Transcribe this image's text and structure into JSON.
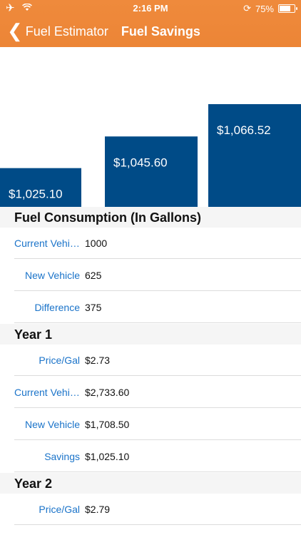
{
  "status": {
    "time": "2:16 PM",
    "battery": "75%",
    "battery_level": 0.75
  },
  "nav": {
    "back_label": "Fuel Estimator",
    "title": "Fuel Savings"
  },
  "colors": {
    "header": "#ec8536",
    "bars": "#004b87",
    "label": "#1a73c9"
  },
  "chart_data": {
    "type": "bar",
    "categories": [
      "",
      "",
      ""
    ],
    "values": [
      1025.1,
      1045.6,
      1066.52
    ],
    "labels": [
      "$1,025.10",
      "$1,045.60",
      "$1,066.52"
    ],
    "title": "",
    "xlabel": "",
    "ylabel": ""
  },
  "sections": [
    {
      "title": "Fuel Consumption (In Gallons)",
      "rows": [
        {
          "label": "Current Vehicle",
          "value": "1000"
        },
        {
          "label": "New Vehicle",
          "value": "625"
        },
        {
          "label": "Difference",
          "value": "375"
        }
      ]
    },
    {
      "title": "Year 1",
      "rows": [
        {
          "label": "Price/Gal",
          "value": "$2.73"
        },
        {
          "label": "Current Vehicle",
          "value": "$2,733.60"
        },
        {
          "label": "New Vehicle",
          "value": "$1,708.50"
        },
        {
          "label": "Savings",
          "value": "$1,025.10"
        }
      ]
    },
    {
      "title": "Year 2",
      "rows": [
        {
          "label": "Price/Gal",
          "value": "$2.79"
        }
      ]
    }
  ]
}
